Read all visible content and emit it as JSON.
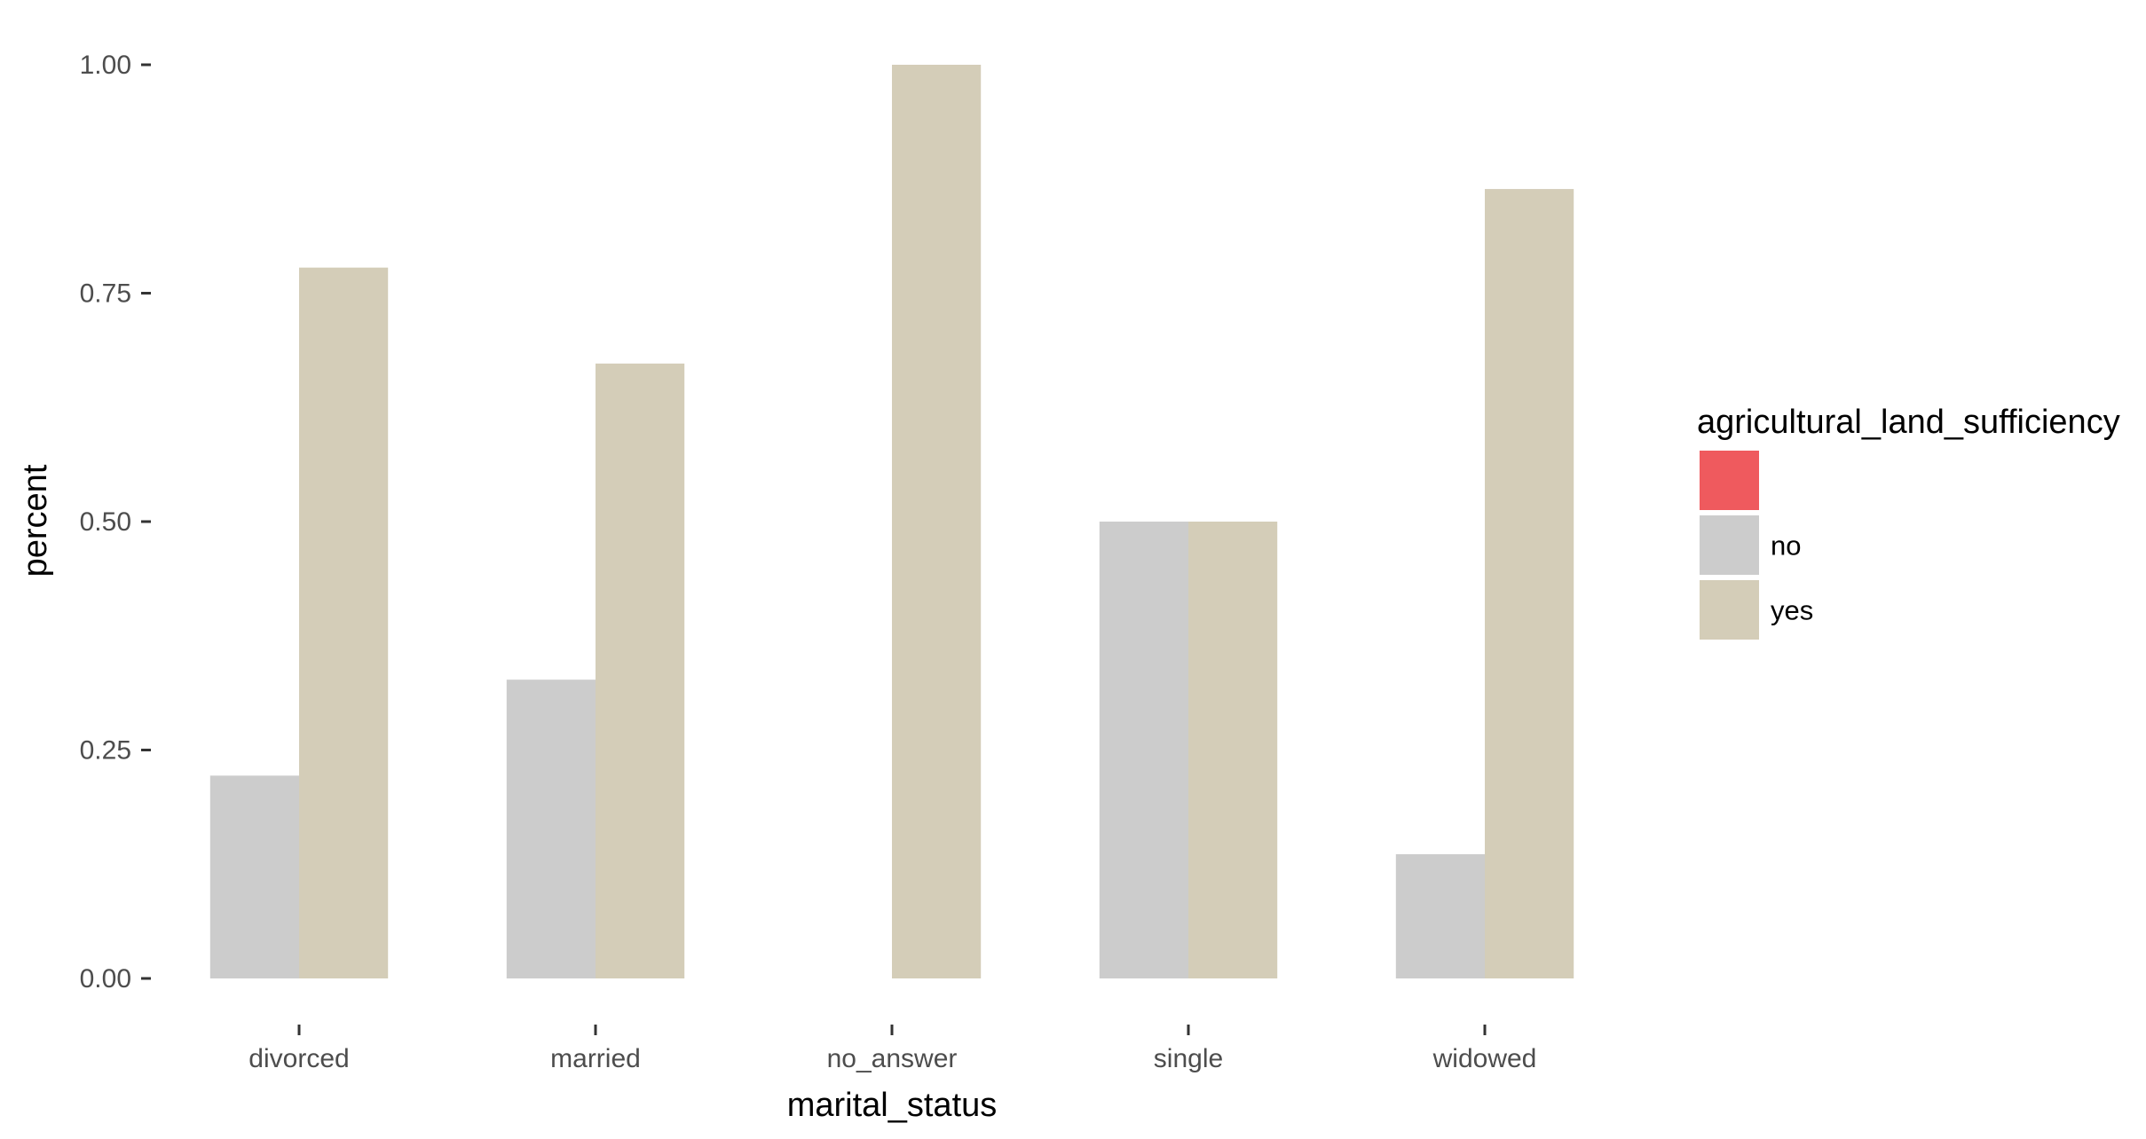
{
  "chart_data": {
    "type": "bar",
    "xlabel": "marital_status",
    "ylabel": "percent",
    "categories": [
      "divorced",
      "married",
      "no_answer",
      "single",
      "widowed"
    ],
    "series": [
      {
        "name": "no",
        "color": "#cccccc",
        "values": [
          0.222,
          0.327,
          0,
          0.5,
          0.136
        ]
      },
      {
        "name": "yes",
        "color": "#d4cdb8",
        "values": [
          0.778,
          0.673,
          1.0,
          0.5,
          0.864
        ]
      }
    ],
    "ylim": [
      0,
      1
    ],
    "yticks": [
      {
        "value": 0,
        "label": "0.00"
      },
      {
        "value": 0.25,
        "label": "0.25"
      },
      {
        "value": 0.5,
        "label": "0.50"
      },
      {
        "value": 0.75,
        "label": "0.75"
      },
      {
        "value": 1.0,
        "label": "1.00"
      }
    ],
    "grid": false,
    "legend": {
      "title": "agricultural_land_sufficiency",
      "placement": "right",
      "entries": [
        {
          "label": "",
          "color": "#ef5a5e"
        },
        {
          "label": "no",
          "color": "#cccccc"
        },
        {
          "label": "yes",
          "color": "#d4cdb8"
        }
      ]
    }
  }
}
